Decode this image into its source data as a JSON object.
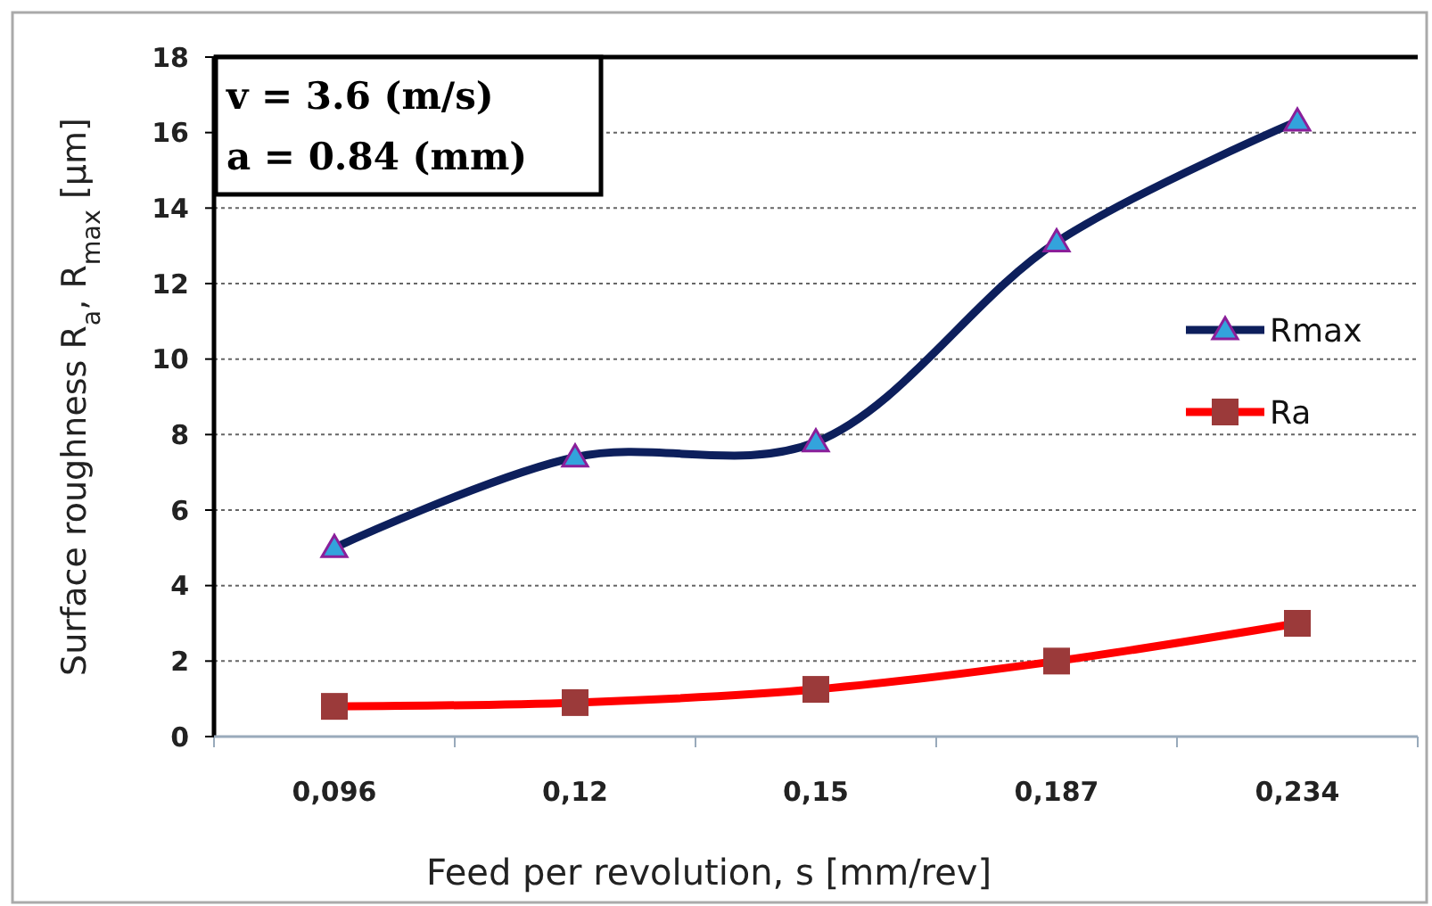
{
  "chart_data": {
    "type": "line",
    "xlabel": "Feed per revolution, s [mm/rev]",
    "ylabel": "Surface roughness R$_{a}$, R$_{max}$ [μm]",
    "categories": [
      "0,096",
      "0,12",
      "0,15",
      "0,187",
      "0,234"
    ],
    "series": [
      {
        "name": "Rmax",
        "color": "#0d1f5c",
        "marker": "triangle",
        "values": [
          5.0,
          7.4,
          7.8,
          13.1,
          16.3
        ]
      },
      {
        "name": "Ra",
        "color": "#ff0000",
        "marker": "square",
        "values": [
          0.8,
          0.9,
          1.25,
          2.0,
          3.0
        ]
      }
    ],
    "ylim": [
      0,
      18
    ],
    "yticks": [
      0,
      2,
      4,
      6,
      8,
      10,
      12,
      14,
      16,
      18
    ],
    "grid": "y",
    "legend": "right",
    "annotations": [
      "v = 3.6 (m/s)",
      "a = 0.84 (mm)"
    ]
  }
}
